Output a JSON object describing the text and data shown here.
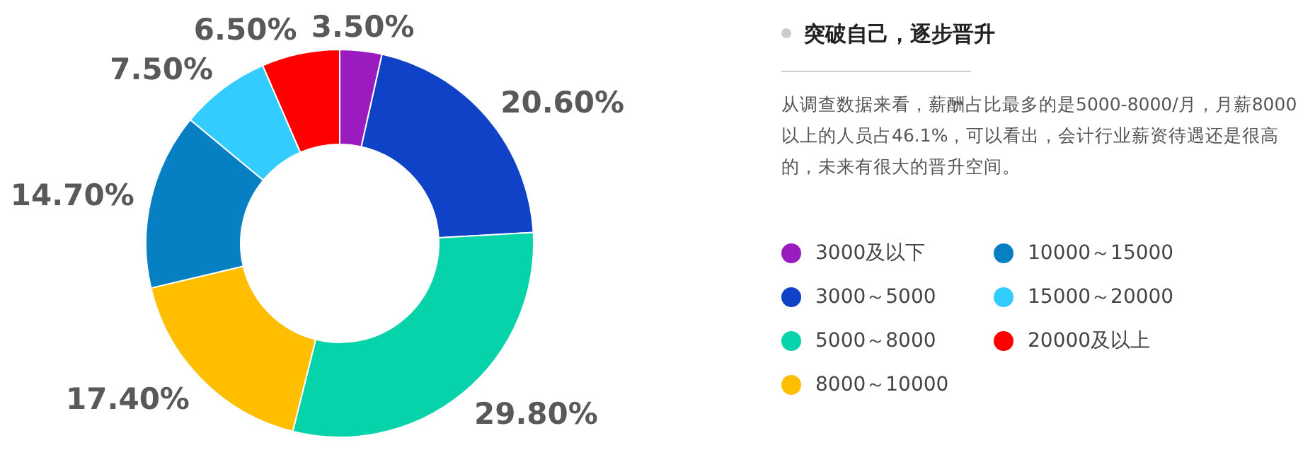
{
  "chart_data": {
    "type": "donut",
    "title": "突破自己，逐步晋升",
    "subtitle": "从调查数据来看，薪酬占比最多的是5000-8000/月，月薪8000以上的人员占46.1%，可以看出，会计行业薪资待遇还是很高的，未来有很大的晋升空间。",
    "categories": [
      "3000及以下",
      "3000～5000",
      "5000～8000",
      "8000～10000",
      "10000～15000",
      "15000～20000",
      "20000及以上"
    ],
    "values": [
      3.5,
      20.6,
      29.8,
      17.4,
      14.7,
      7.5,
      6.5
    ],
    "value_labels": [
      "3.50%",
      "20.60%",
      "29.80%",
      "17.40%",
      "14.70%",
      "7.50%",
      "6.50%"
    ],
    "colors": [
      "#9a1cbf",
      "#1042c8",
      "#06d3a9",
      "#ffbf00",
      "#0680c2",
      "#33ccff",
      "#ff0000"
    ],
    "legend": "right"
  }
}
